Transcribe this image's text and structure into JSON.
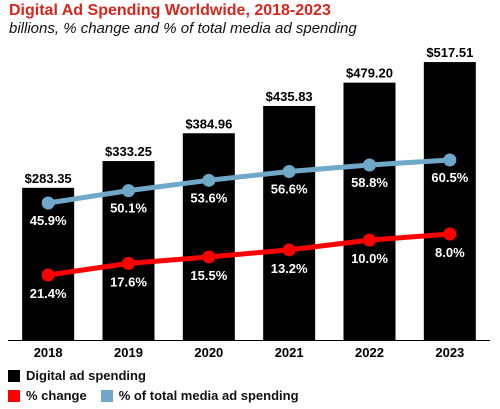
{
  "chart_data": {
    "type": "bar",
    "title": "Digital Ad Spending Worldwide, 2018-2023",
    "subtitle": "billions, % change and % of total media ad spending",
    "categories": [
      "2018",
      "2019",
      "2020",
      "2021",
      "2022",
      "2023"
    ],
    "ylim": [
      0,
      540
    ],
    "grid": false,
    "legend_position": "bottom-left",
    "series": [
      {
        "name": "Digital ad spending",
        "type": "bar",
        "color": "#000000",
        "values": [
          283.35,
          333.25,
          384.96,
          435.83,
          479.2,
          517.51
        ],
        "labels": [
          "$283.35",
          "$333.25",
          "$384.96",
          "$435.83",
          "$479.20",
          "$517.51"
        ]
      },
      {
        "name": "% change",
        "type": "line",
        "color": "#ff0000",
        "values": [
          21.4,
          17.6,
          15.5,
          13.2,
          10.0,
          8.0
        ],
        "labels": [
          "21.4%",
          "17.6%",
          "15.5%",
          "13.2%",
          "10.0%",
          "8.0%"
        ]
      },
      {
        "name": "% of total media ad spending",
        "type": "line",
        "color": "#6fa8c8",
        "values": [
          45.9,
          50.1,
          53.6,
          56.6,
          58.8,
          60.5
        ],
        "labels": [
          "45.9%",
          "50.1%",
          "53.6%",
          "56.6%",
          "58.8%",
          "60.5%"
        ]
      }
    ]
  }
}
